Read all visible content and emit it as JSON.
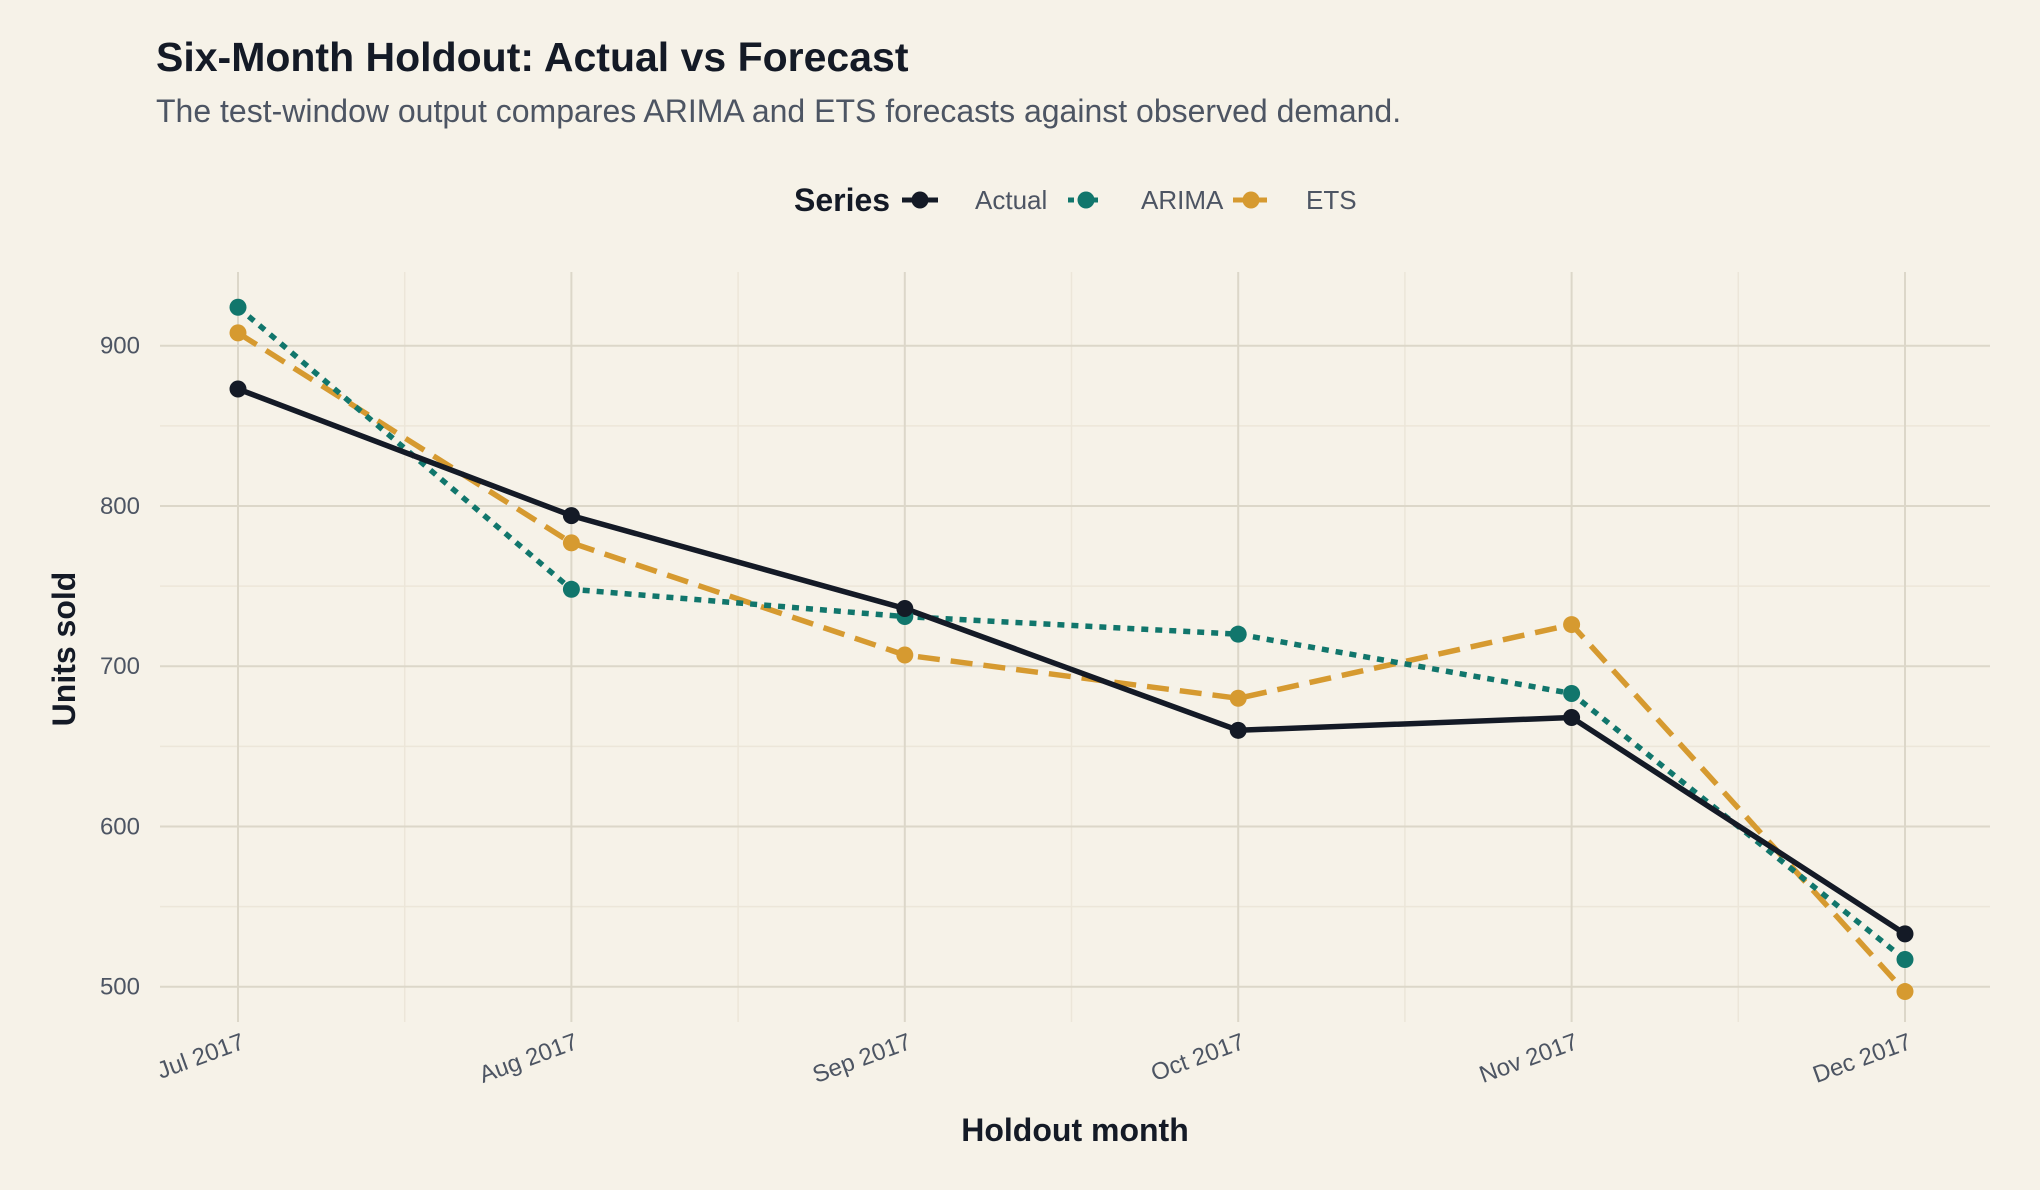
{
  "title": "Six-Month Holdout: Actual vs Forecast",
  "subtitle": "The test-window output compares ARIMA and ETS forecasts against observed demand.",
  "chart_data": {
    "type": "line",
    "title": "Six-Month Holdout: Actual vs Forecast",
    "subtitle": "The test-window output compares ARIMA and ETS forecasts against observed demand.",
    "xlabel": "Holdout month",
    "ylabel": "Units sold",
    "categories": [
      "Jul 2017",
      "Aug 2017",
      "Sep 2017",
      "Oct 2017",
      "Nov 2017",
      "Dec 2017"
    ],
    "yticks": [
      500,
      600,
      700,
      800,
      900
    ],
    "ylim": [
      478,
      946
    ],
    "grid": true,
    "legend": {
      "title": "Series",
      "position": "top"
    },
    "series": [
      {
        "name": "Actual",
        "color": "#141a26",
        "dash": "solid",
        "values": [
          873,
          794,
          736,
          660,
          668,
          533
        ]
      },
      {
        "name": "ARIMA",
        "color": "#11766c",
        "dash": "dotted",
        "values": [
          924,
          748,
          731,
          720,
          683,
          517
        ]
      },
      {
        "name": "ETS",
        "color": "#d69a30",
        "dash": "dashed",
        "values": [
          908,
          777,
          707,
          680,
          726,
          497
        ]
      }
    ]
  }
}
